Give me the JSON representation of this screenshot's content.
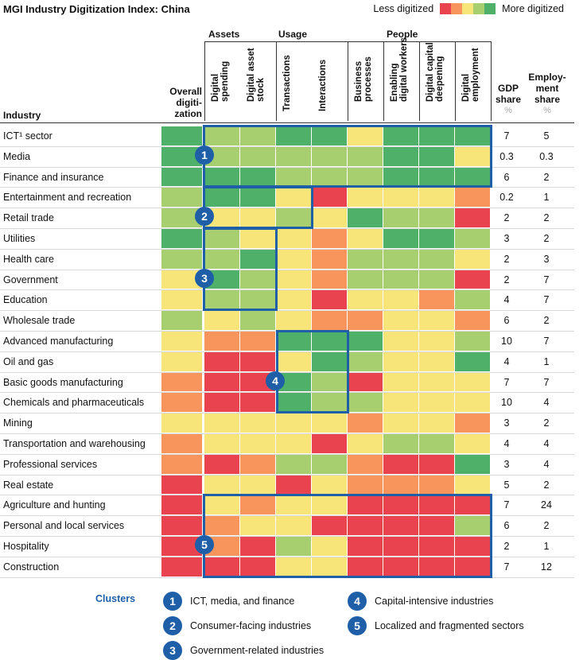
{
  "title": "MGI Industry Digitization Index: China",
  "scale": {
    "low_label": "Less digitized",
    "high_label": "More digitized",
    "colors": [
      "#e8434e",
      "#f7955d",
      "#f7e57a",
      "#a8cf6f",
      "#4fb06a"
    ]
  },
  "headers": {
    "industry": "Industry",
    "overall": [
      "Overall",
      "digiti-",
      "zation"
    ],
    "groups": [
      "Assets",
      "Usage",
      "People"
    ],
    "columns": [
      [
        "Digital",
        "spending"
      ],
      [
        "Digital asset",
        "stock"
      ],
      [
        "Transactions"
      ],
      [
        "Interactions"
      ],
      [
        "Business",
        "processes"
      ],
      [
        "Enabling",
        "digital workers"
      ],
      [
        "Digital capital",
        "deepening"
      ],
      [
        "Digital",
        "employment"
      ]
    ],
    "gdp": [
      "GDP",
      "share",
      "%"
    ],
    "emp": [
      "Employ-",
      "ment",
      "share",
      "%"
    ]
  },
  "chart_data": {
    "type": "heatmap",
    "title": "MGI Industry Digitization Index: China",
    "scale": "1 = less digitized, 5 = more digitized",
    "columns": [
      "Overall digitization",
      "Digital spending",
      "Digital asset stock",
      "Transactions",
      "Interactions",
      "Business processes",
      "Enabling digital workers",
      "Digital capital deepening",
      "Digital employment"
    ],
    "rows": [
      {
        "industry": "ICT¹ sector",
        "levels": [
          5,
          4,
          4,
          5,
          5,
          3,
          5,
          5,
          5
        ],
        "gdp": "7",
        "emp": "5"
      },
      {
        "industry": "Media",
        "levels": [
          5,
          4,
          4,
          4,
          4,
          4,
          5,
          5,
          3
        ],
        "gdp": "0.3",
        "emp": "0.3"
      },
      {
        "industry": "Finance and insurance",
        "levels": [
          5,
          5,
          5,
          4,
          4,
          4,
          5,
          5,
          5
        ],
        "gdp": "6",
        "emp": "2"
      },
      {
        "industry": "Entertainment and recreation",
        "levels": [
          4,
          5,
          5,
          3,
          1,
          3,
          3,
          3,
          2
        ],
        "gdp": "0.2",
        "emp": "1"
      },
      {
        "industry": "Retail trade",
        "levels": [
          4,
          3,
          3,
          4,
          3,
          5,
          4,
          4,
          1
        ],
        "gdp": "2",
        "emp": "2"
      },
      {
        "industry": "Utilities",
        "levels": [
          5,
          4,
          3,
          3,
          2,
          3,
          5,
          5,
          4
        ],
        "gdp": "3",
        "emp": "2"
      },
      {
        "industry": "Health care",
        "levels": [
          4,
          4,
          5,
          3,
          2,
          4,
          4,
          4,
          3
        ],
        "gdp": "2",
        "emp": "3"
      },
      {
        "industry": "Government",
        "levels": [
          3,
          5,
          4,
          3,
          2,
          4,
          4,
          4,
          1
        ],
        "gdp": "2",
        "emp": "7"
      },
      {
        "industry": "Education",
        "levels": [
          3,
          4,
          4,
          3,
          1,
          3,
          3,
          2,
          4
        ],
        "gdp": "4",
        "emp": "7"
      },
      {
        "industry": "Wholesale trade",
        "levels": [
          4,
          3,
          4,
          3,
          2,
          2,
          3,
          3,
          2
        ],
        "gdp": "6",
        "emp": "2"
      },
      {
        "industry": "Advanced manufacturing",
        "levels": [
          3,
          2,
          2,
          5,
          5,
          5,
          3,
          3,
          4
        ],
        "gdp": "10",
        "emp": "7"
      },
      {
        "industry": "Oil and gas",
        "levels": [
          3,
          1,
          1,
          3,
          5,
          4,
          3,
          3,
          5
        ],
        "gdp": "4",
        "emp": "1"
      },
      {
        "industry": "Basic goods manufacturing",
        "levels": [
          2,
          1,
          1,
          5,
          4,
          1,
          3,
          3,
          3
        ],
        "gdp": "7",
        "emp": "7"
      },
      {
        "industry": "Chemicals and pharmaceuticals",
        "levels": [
          2,
          1,
          1,
          5,
          4,
          4,
          3,
          3,
          3
        ],
        "gdp": "10",
        "emp": "4"
      },
      {
        "industry": "Mining",
        "levels": [
          3,
          3,
          3,
          3,
          3,
          2,
          3,
          3,
          2
        ],
        "gdp": "3",
        "emp": "2"
      },
      {
        "industry": "Transportation and warehousing",
        "levels": [
          2,
          3,
          3,
          3,
          1,
          3,
          4,
          4,
          3
        ],
        "gdp": "4",
        "emp": "4"
      },
      {
        "industry": "Professional services",
        "levels": [
          2,
          1,
          2,
          4,
          4,
          2,
          1,
          1,
          5
        ],
        "gdp": "3",
        "emp": "4"
      },
      {
        "industry": "Real estate",
        "levels": [
          1,
          3,
          3,
          1,
          3,
          2,
          2,
          2,
          3
        ],
        "gdp": "5",
        "emp": "2"
      },
      {
        "industry": "Agriculture and hunting",
        "levels": [
          1,
          3,
          2,
          3,
          3,
          1,
          1,
          1,
          1
        ],
        "gdp": "7",
        "emp": "24"
      },
      {
        "industry": "Personal and local services",
        "levels": [
          1,
          2,
          3,
          3,
          1,
          1,
          1,
          1,
          4
        ],
        "gdp": "6",
        "emp": "2"
      },
      {
        "industry": "Hospitality",
        "levels": [
          1,
          2,
          1,
          4,
          3,
          1,
          1,
          1,
          1
        ],
        "gdp": "2",
        "emp": "1"
      },
      {
        "industry": "Construction",
        "levels": [
          1,
          1,
          1,
          3,
          3,
          1,
          1,
          1,
          1
        ],
        "gdp": "7",
        "emp": "12"
      }
    ],
    "clusters": [
      {
        "id": "1",
        "name": "ICT, media, and finance"
      },
      {
        "id": "2",
        "name": "Consumer-facing industries"
      },
      {
        "id": "3",
        "name": "Government-related industries"
      },
      {
        "id": "4",
        "name": "Capital-intensive industries"
      },
      {
        "id": "5",
        "name": "Localized and fragmented sectors"
      }
    ]
  },
  "clusters_title": "Clusters"
}
